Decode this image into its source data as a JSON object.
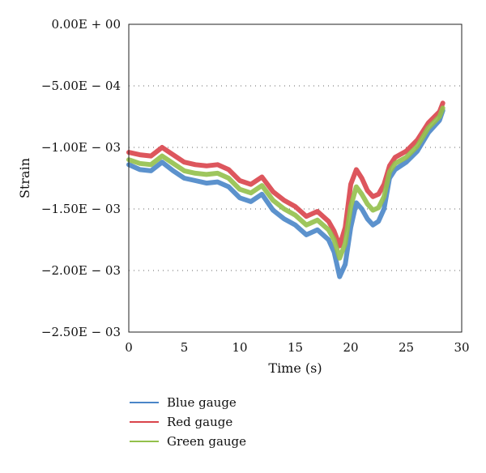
{
  "chart_data": {
    "type": "line",
    "xlabel": "Time (s)",
    "ylabel": "Strain",
    "xlim": [
      0,
      30
    ],
    "ylim": [
      -0.0025,
      0
    ],
    "x_ticks": [
      0,
      5,
      10,
      15,
      20,
      25,
      30
    ],
    "y_ticks": [
      0,
      -0.0005,
      -0.001,
      -0.0015,
      -0.002,
      -0.0025
    ],
    "y_tick_labels": [
      "0.00E + 00",
      "−5.00E − 04",
      "−1.00E − 03",
      "−1.50E − 03",
      "−2.00E − 03",
      "−2.50E − 03"
    ],
    "x_tick_labels": [
      "0",
      "5",
      "10",
      "15",
      "20",
      "25",
      "30"
    ],
    "grid": "horizontal dotted",
    "legend_position": "bottom-left, below plot",
    "x": [
      0,
      1,
      2,
      3,
      4,
      5,
      6,
      7,
      8,
      9,
      10,
      11,
      12,
      13,
      14,
      15,
      16,
      17,
      18,
      18.5,
      19,
      19.5,
      20,
      20.5,
      21,
      21.5,
      22,
      22.5,
      23,
      23.5,
      24,
      25,
      26,
      27,
      28,
      28.3
    ],
    "series": [
      {
        "name": "Blue gauge",
        "color": "#4a86c8",
        "values": [
          -0.00114,
          -0.00118,
          -0.00119,
          -0.00112,
          -0.00119,
          -0.00125,
          -0.00127,
          -0.00129,
          -0.00128,
          -0.00132,
          -0.00141,
          -0.00144,
          -0.00138,
          -0.00151,
          -0.00158,
          -0.00163,
          -0.00171,
          -0.00167,
          -0.00175,
          -0.00185,
          -0.00205,
          -0.00195,
          -0.00165,
          -0.00145,
          -0.0015,
          -0.00158,
          -0.00163,
          -0.0016,
          -0.0015,
          -0.00125,
          -0.00118,
          -0.00112,
          -0.00103,
          -0.00088,
          -0.00078,
          -0.0007
        ]
      },
      {
        "name": "Red gauge",
        "color": "#d9444b",
        "values": [
          -0.00104,
          -0.00106,
          -0.00107,
          -0.001,
          -0.00106,
          -0.00112,
          -0.00114,
          -0.00115,
          -0.00114,
          -0.00118,
          -0.00127,
          -0.0013,
          -0.00124,
          -0.00136,
          -0.00143,
          -0.00148,
          -0.00156,
          -0.00152,
          -0.0016,
          -0.00168,
          -0.0018,
          -0.00165,
          -0.0013,
          -0.00118,
          -0.00125,
          -0.00135,
          -0.0014,
          -0.00138,
          -0.0013,
          -0.00115,
          -0.00108,
          -0.00103,
          -0.00094,
          -0.0008,
          -0.00071,
          -0.00064
        ]
      },
      {
        "name": "Green gauge",
        "color": "#93c04b",
        "values": [
          -0.0011,
          -0.00113,
          -0.00114,
          -0.00107,
          -0.00113,
          -0.00119,
          -0.00121,
          -0.00122,
          -0.00121,
          -0.00125,
          -0.00134,
          -0.00137,
          -0.00131,
          -0.00143,
          -0.0015,
          -0.00155,
          -0.00163,
          -0.00159,
          -0.00167,
          -0.00175,
          -0.0019,
          -0.00178,
          -0.00148,
          -0.00132,
          -0.00138,
          -0.00146,
          -0.00151,
          -0.00149,
          -0.0014,
          -0.0012,
          -0.00113,
          -0.00108,
          -0.00099,
          -0.00084,
          -0.00075,
          -0.00068
        ]
      }
    ]
  }
}
